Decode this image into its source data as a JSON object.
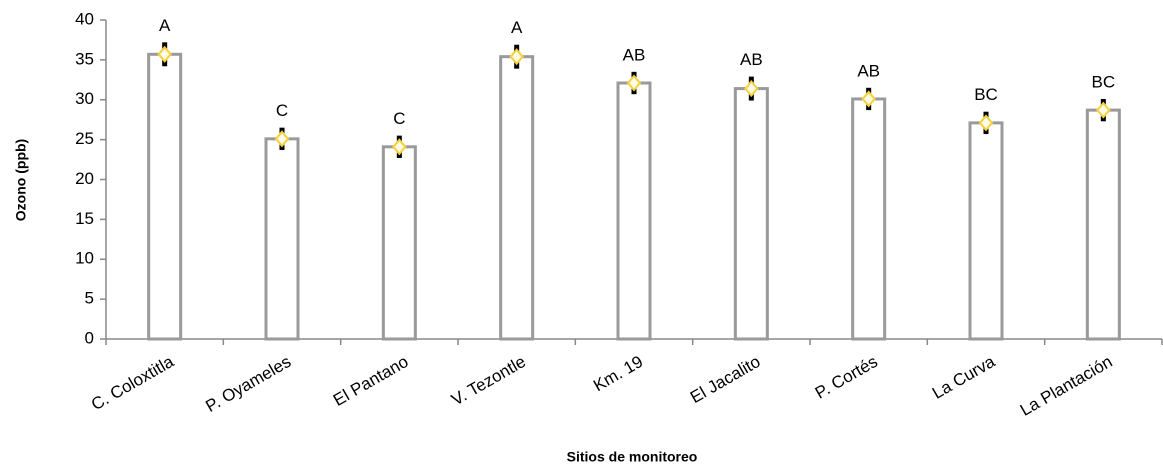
{
  "chart_data": {
    "type": "bar",
    "x_label": "Sitios de monitoreo",
    "y_label": "Ozono (ppb)",
    "categories": [
      "C. Coloxtitla",
      "P. Oyameles",
      "El Pantano",
      "V. Tezontle",
      "Km. 19",
      "El Jacalito",
      "P. Cortés",
      "La Curva",
      "La Plantación"
    ],
    "values": [
      35.7,
      25.1,
      24.1,
      35.4,
      32.1,
      31.4,
      30.1,
      27.1,
      28.7
    ],
    "errors": [
      1.5,
      1.4,
      1.4,
      1.5,
      1.4,
      1.5,
      1.4,
      1.4,
      1.4
    ],
    "letters": [
      "A",
      "C",
      "C",
      "A",
      "AB",
      "AB",
      "AB",
      "BC",
      "BC"
    ],
    "color": "#ffffff",
    "edge_color": "#9a9a9a",
    "marker_color": "#f5d23c",
    "ylim": [
      0,
      40
    ],
    "yticks": [
      0,
      5,
      10,
      15,
      20,
      25,
      30,
      35,
      40
    ],
    "grid": false
  }
}
